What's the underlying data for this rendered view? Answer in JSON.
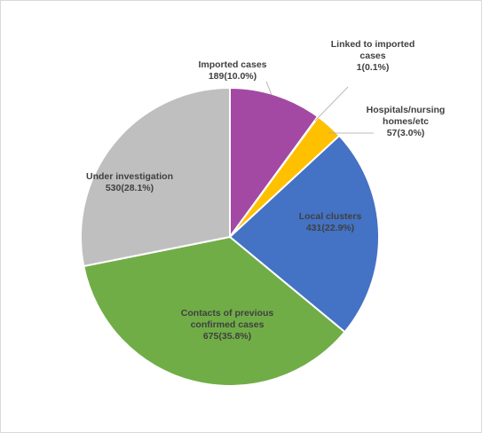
{
  "chart_data": {
    "type": "pie",
    "title": "",
    "legend": "none",
    "start_angle_deg": 0,
    "direction": "clockwise",
    "slices": [
      {
        "name": "Imported cases",
        "value": 189,
        "percent": "10.0%",
        "label_lines": [
          "Imported cases",
          "189(10.0%)"
        ],
        "color": "#a349a4"
      },
      {
        "name": "Linked to imported cases",
        "value": 1,
        "percent": "0.1%",
        "label_lines": [
          "Linked to imported",
          "cases",
          "1(0.1%)"
        ],
        "color": "#ed7d31"
      },
      {
        "name": "Hospitals/nursing homes/etc",
        "value": 57,
        "percent": "3.0%",
        "label_lines": [
          "Hospitals/nursing",
          "homes/etc",
          "57(3.0%)"
        ],
        "color": "#ffc000"
      },
      {
        "name": "Local clusters",
        "value": 431,
        "percent": "22.9%",
        "label_lines": [
          "Local clusters",
          "431(22.9%)"
        ],
        "color": "#4472c4"
      },
      {
        "name": "Contacts of previous confirmed cases",
        "value": 675,
        "percent": "35.8%",
        "label_lines": [
          "Contacts of previous",
          "confirmed cases",
          "675(35.8%)"
        ],
        "color": "#70ad47"
      },
      {
        "name": "Under investigation",
        "value": 530,
        "percent": "28.1%",
        "label_lines": [
          "Under investigation",
          "530(28.1%)"
        ],
        "color": "#bfbfbf"
      }
    ]
  }
}
